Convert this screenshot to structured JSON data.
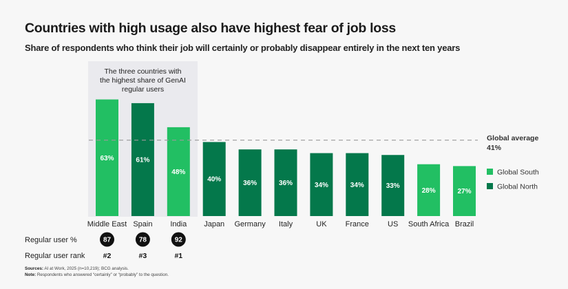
{
  "title": "Countries with high usage also have highest fear of job loss",
  "subtitle": "Share of respondents who think their job will certainly or probably disappear entirely in the next ten years",
  "colors": {
    "global_south": "#22BF63",
    "global_north": "#04784B",
    "highlight_bg": "#EAEAEE",
    "reference_line": "#9A9A9A",
    "circle": "#111111"
  },
  "highlight": {
    "lines": [
      "The three countries with",
      "the highest share of GenAI",
      "regular users"
    ]
  },
  "chart_data": {
    "type": "bar",
    "title": "Countries with high usage also have highest fear of job loss",
    "subtitle": "Share of respondents who think their job will certainly or probably disappear entirely in the next ten years",
    "xlabel": "",
    "ylabel": "",
    "unit": "%",
    "grid": false,
    "categories": [
      "Middle East",
      "Spain",
      "India",
      "Japan",
      "Germany",
      "Italy",
      "UK",
      "France",
      "US",
      "South Africa",
      "Brazil"
    ],
    "values": [
      63,
      61,
      48,
      40,
      36,
      36,
      34,
      34,
      33,
      28,
      27
    ],
    "value_labels": [
      "63%",
      "61%",
      "48%",
      "40%",
      "36%",
      "36%",
      "34%",
      "34%",
      "33%",
      "28%",
      "27%"
    ],
    "groups": [
      "Global South",
      "Global North",
      "Global South",
      "Global North",
      "Global North",
      "Global North",
      "Global North",
      "Global North",
      "Global North",
      "Global South",
      "Global South"
    ],
    "highlighted_categories": [
      "Middle East",
      "Spain",
      "India"
    ],
    "reference_line": {
      "label": "Global average",
      "value": 41,
      "value_label": "41%"
    },
    "legend": [
      {
        "label": "Global South",
        "color": "#22BF63"
      },
      {
        "label": "Global North",
        "color": "#04784B"
      }
    ],
    "legend_position": "right",
    "regular_users": {
      "pct_row_label": "Regular user %",
      "rank_row_label": "Regular user rank",
      "entries": [
        {
          "category": "Middle East",
          "pct": "87",
          "rank": "#2"
        },
        {
          "category": "Spain",
          "pct": "78",
          "rank": "#3"
        },
        {
          "category": "India",
          "pct": "92",
          "rank": "#1"
        }
      ]
    }
  },
  "footnotes": {
    "sources_label": "Sources:",
    "sources_text": " AI at Work, 2025 (n=10,219); BCG analysis.",
    "note_label": "Note:",
    "note_text": " Respondents who answered “certainly” or “probably” to the question."
  }
}
